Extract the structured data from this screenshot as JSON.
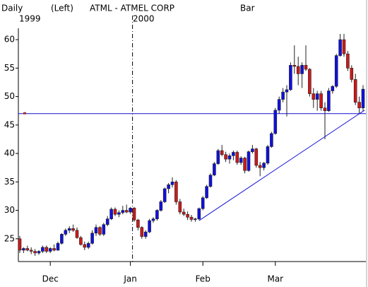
{
  "chart_data": {
    "type": "candlestick",
    "header": {
      "period": "Daily",
      "axis_side": "(Left)",
      "title": "ATML - ATMEL CORP",
      "style": "Bar",
      "year_start": "1999",
      "year_end": "2000"
    },
    "categories": [
      null,
      null,
      null,
      null,
      null,
      null,
      null,
      null,
      "Dec",
      null,
      null,
      null,
      null,
      null,
      null,
      null,
      null,
      null,
      null,
      null,
      null,
      null,
      null,
      null,
      null,
      null,
      null,
      null,
      null,
      "Jan",
      null,
      null,
      null,
      null,
      null,
      null,
      null,
      null,
      null,
      null,
      null,
      null,
      null,
      null,
      null,
      null,
      null,
      null,
      "Feb",
      null,
      null,
      null,
      null,
      null,
      null,
      null,
      null,
      null,
      null,
      null,
      null,
      null,
      null,
      null,
      null,
      null,
      null,
      "Mar",
      null,
      null,
      null,
      null,
      null,
      null,
      null,
      null,
      null,
      null,
      null,
      null,
      null,
      null,
      null,
      null,
      null,
      null,
      null,
      null,
      null,
      null,
      null
    ],
    "open": [
      25,
      23,
      23.3,
      23,
      22.8,
      22.5,
      22.8,
      23.5,
      22.8,
      23.3,
      23,
      24.2,
      25.8,
      26.5,
      26.8,
      26.5,
      25.2,
      24,
      23.5,
      24.2,
      26,
      27,
      25.8,
      27.5,
      28.5,
      30.2,
      29.3,
      29.6,
      30,
      29.7,
      30.4,
      28.3,
      27,
      25.4,
      26.2,
      28.2,
      28.5,
      30,
      31.5,
      33.8,
      34.5,
      35,
      31.5,
      29.7,
      29.3,
      28.8,
      28.4,
      28.5,
      30.3,
      32.2,
      34.2,
      36.2,
      38.2,
      40.5,
      39.8,
      39,
      39.6,
      40.2,
      38.4,
      39.2,
      37,
      40.3,
      40.8,
      37.9,
      37.5,
      38.3,
      41.2,
      43.5,
      47.6,
      49.5,
      50.8,
      51.2,
      55.5,
      55.3,
      54,
      55.5,
      54.8,
      50.5,
      49.5,
      50.5,
      48,
      47.5,
      51,
      51.8,
      57.2,
      60,
      57.5,
      55,
      53,
      49,
      48
    ],
    "high": [
      25.5,
      23.5,
      23.8,
      23.5,
      23.2,
      23,
      23.8,
      23.8,
      23.5,
      24,
      24.5,
      26,
      26.8,
      27.2,
      27.5,
      27,
      25.5,
      24.5,
      24.5,
      26.5,
      27.5,
      27.2,
      27.8,
      29,
      30.5,
      30.5,
      30,
      30.8,
      31,
      30.6,
      30.6,
      28.5,
      27.2,
      26.5,
      28.5,
      28.8,
      30.2,
      31.8,
      34,
      34.8,
      35.8,
      35.3,
      32,
      30.3,
      29.8,
      29.2,
      28.7,
      30.5,
      32.5,
      34.5,
      36.5,
      38.5,
      40.8,
      41.5,
      40.3,
      40,
      40.5,
      40.5,
      39.5,
      39.4,
      40.5,
      41.5,
      41,
      38.5,
      38.5,
      41.5,
      43.8,
      48,
      50,
      51.5,
      52,
      56,
      59,
      57,
      56,
      59,
      55,
      51.5,
      51,
      51,
      49,
      51.5,
      52,
      57.5,
      61,
      61,
      58,
      55.5,
      54,
      50,
      52
    ],
    "low": [
      22.5,
      22.5,
      22.8,
      22.3,
      22,
      22.2,
      22.5,
      22.5,
      22.5,
      22.8,
      22.9,
      24,
      25.5,
      26,
      26.2,
      25,
      23.8,
      23,
      23.2,
      24,
      25.5,
      25.5,
      25.5,
      27.2,
      28.3,
      29,
      28.8,
      29.3,
      29.5,
      29.4,
      28,
      26.5,
      25,
      25,
      26,
      27.8,
      28.2,
      29.8,
      31.3,
      33,
      34,
      31,
      29.3,
      29,
      28.3,
      28,
      28,
      28.3,
      30,
      32,
      34,
      36,
      38,
      39.5,
      38.5,
      38.2,
      38.8,
      38,
      38,
      36.5,
      36.8,
      40,
      37.5,
      36,
      37,
      38,
      41,
      43.3,
      47,
      49,
      46.5,
      51,
      54,
      52,
      51.5,
      54.5,
      50,
      48,
      47.5,
      47.5,
      42.5,
      47.3,
      50.5,
      51.5,
      57,
      57,
      54.5,
      52.5,
      48.5,
      47,
      47.5
    ],
    "close": [
      23,
      23.3,
      23,
      22.8,
      22.5,
      22.8,
      23.5,
      22.8,
      23.3,
      23,
      24.2,
      25.8,
      26.5,
      26.8,
      26.5,
      25.2,
      24,
      23.5,
      24.2,
      26,
      27,
      25.8,
      27.5,
      28.5,
      30.2,
      29.3,
      29.6,
      30,
      29.7,
      30.4,
      28.3,
      27,
      25.4,
      26.2,
      28.2,
      28.5,
      30,
      31.5,
      33.8,
      34.5,
      35,
      31.5,
      29.7,
      29.3,
      28.8,
      28.4,
      28.5,
      30.3,
      32.2,
      34.2,
      36.2,
      38.2,
      40.5,
      39.8,
      39,
      39.6,
      40.2,
      38.4,
      39.2,
      37,
      40.3,
      40.8,
      37.9,
      37.5,
      38.3,
      41.2,
      43.5,
      47.6,
      49.5,
      50.8,
      51.2,
      55.5,
      55.3,
      54,
      55.5,
      54.8,
      50.5,
      49.5,
      50.5,
      48,
      47.5,
      51,
      51.8,
      57.2,
      60,
      57.5,
      55,
      53,
      49,
      48,
      51.3
    ],
    "up_color": "#1010e0",
    "down_color": "#d01818",
    "hline": 47,
    "trendline": {
      "x": [
        47,
        90.4
      ],
      "y": [
        28.2,
        47.6
      ]
    },
    "line_color": "#1010d0",
    "ylim": [
      21,
      62
    ],
    "yticks": [
      25,
      30,
      35,
      40,
      45,
      50,
      55,
      60
    ]
  }
}
